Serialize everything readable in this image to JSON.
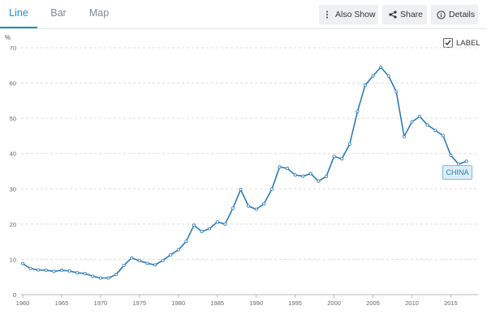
{
  "tabs": [
    {
      "label": "Line",
      "active": true
    },
    {
      "label": "Bar",
      "active": false
    },
    {
      "label": "Map",
      "active": false
    }
  ],
  "actions": {
    "also_show": "Also Show",
    "share": "Share",
    "details": "Details"
  },
  "label_toggle": {
    "text": "LABEL",
    "checked": true
  },
  "colors": {
    "accent": "#1b8ed1",
    "series": "#2a7ab8"
  },
  "icons": {
    "also_show": "vertical-ellipsis-icon",
    "share": "share-icon",
    "details": "info-circle-icon",
    "label_checkbox": "checkbox-checked-icon"
  },
  "chart_data": {
    "type": "line",
    "ylabel": "%",
    "ylim": [
      0,
      70
    ],
    "yticks": [
      0,
      10,
      20,
      30,
      40,
      50,
      60,
      70
    ],
    "xlim": [
      1960,
      2018.5
    ],
    "xticks": [
      1960,
      1965,
      1970,
      1975,
      1980,
      1985,
      1990,
      1995,
      2000,
      2005,
      2010,
      2015
    ],
    "grid": "horizontal-dashed",
    "series": [
      {
        "name": "CHINA",
        "x": [
          1960,
          1961,
          1962,
          1963,
          1964,
          1965,
          1966,
          1967,
          1968,
          1969,
          1970,
          1971,
          1972,
          1973,
          1974,
          1975,
          1976,
          1977,
          1978,
          1979,
          1980,
          1981,
          1982,
          1983,
          1984,
          1985,
          1986,
          1987,
          1988,
          1989,
          1990,
          1991,
          1992,
          1993,
          1994,
          1995,
          1996,
          1997,
          1998,
          1999,
          2000,
          2001,
          2002,
          2003,
          2004,
          2005,
          2006,
          2007,
          2008,
          2009,
          2010,
          2011,
          2012,
          2013,
          2014,
          2015,
          2016,
          2017
        ],
        "values": [
          8.8,
          7.4,
          7.0,
          6.9,
          6.6,
          6.9,
          6.7,
          6.2,
          6.0,
          5.2,
          4.7,
          4.7,
          5.7,
          8.3,
          10.4,
          9.6,
          8.9,
          8.4,
          9.7,
          11.3,
          12.7,
          15.1,
          19.7,
          17.9,
          18.7,
          20.6,
          20.0,
          24.5,
          29.8,
          25.1,
          24.2,
          25.8,
          29.9,
          36.2,
          35.8,
          33.9,
          33.6,
          34.3,
          32.2,
          33.5,
          39.2,
          38.5,
          42.7,
          51.9,
          59.4,
          62.0,
          64.5,
          62.0,
          57.5,
          44.8,
          49.0,
          50.5,
          48.1,
          46.6,
          45.1,
          39.5,
          37.0,
          37.8
        ]
      }
    ]
  }
}
